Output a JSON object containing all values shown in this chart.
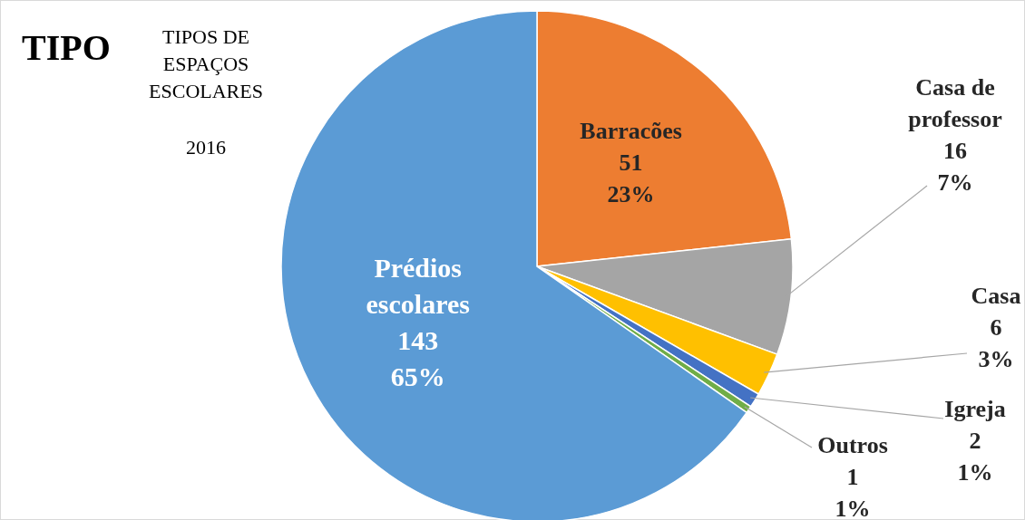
{
  "chart_data": {
    "type": "pie",
    "title": "TIPO",
    "subtitle": "TIPOS DE ESPAÇOS ESCOLARES",
    "annotations": [
      "2016"
    ],
    "categories": [
      "Barracões",
      "Casa de professor",
      "Casa",
      "Igreja",
      "Outros",
      "Prédios escolares"
    ],
    "values": [
      51,
      16,
      6,
      2,
      1,
      143
    ],
    "colors": [
      "#ed7d31",
      "#a5a5a5",
      "#ffc000",
      "#4472c4",
      "#70ad47",
      "#5b9bd5"
    ],
    "value_labels": [
      "51\n23%",
      "16\n7%",
      "6\n3%",
      "2\n1%",
      "1\n1%",
      "143\n65%"
    ]
  }
}
